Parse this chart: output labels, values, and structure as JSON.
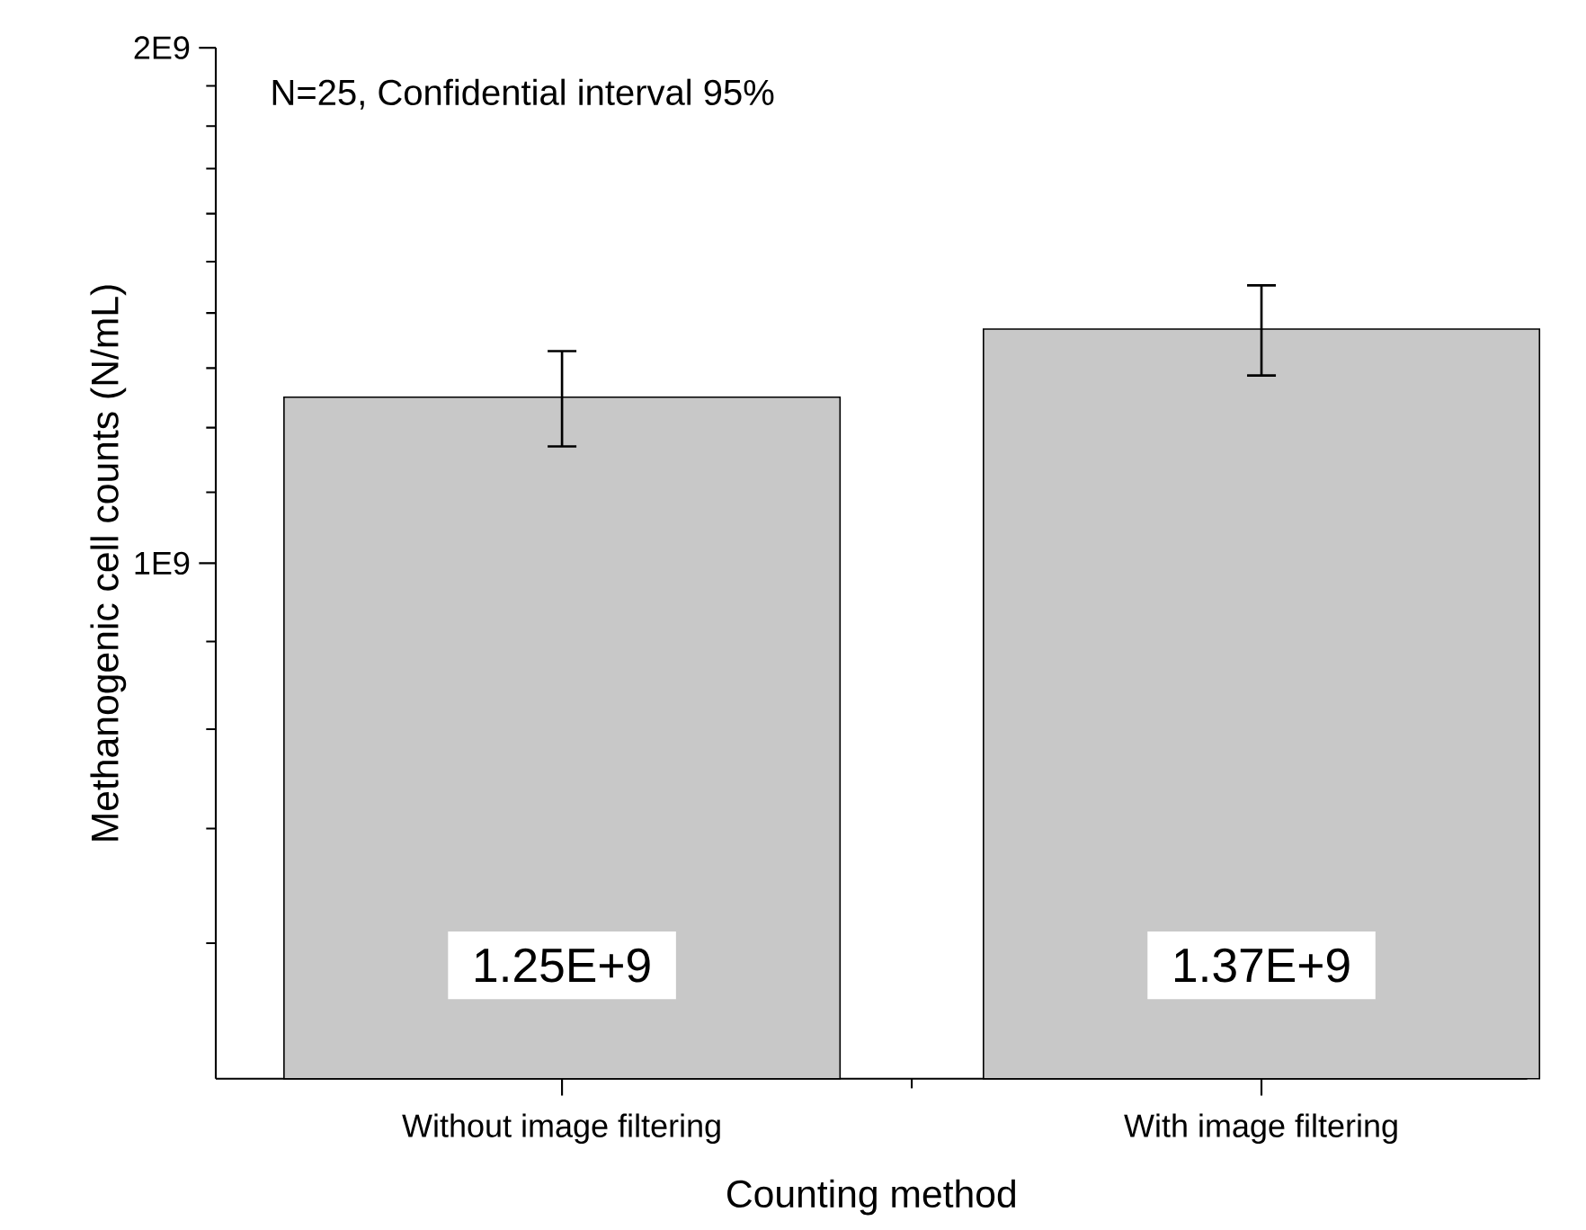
{
  "chart_data": {
    "type": "bar",
    "annotations": [
      "N=25, Confidential interval 95%"
    ],
    "xlabel": "Counting method",
    "ylabel": "Methanogenic cell counts (N/mL)",
    "categories": [
      "Without image filtering",
      "With image filtering"
    ],
    "values": [
      1250000000.0,
      1370000000.0
    ],
    "errors": [
      80000000.0,
      83000000.0
    ],
    "value_labels": [
      "1.25E+9",
      "1.37E+9"
    ],
    "color": "#c8c8c8",
    "log": "y",
    "ylim": [
      500000000.0,
      2000000000.0
    ],
    "yticks": [
      {
        "value": 600000000.0,
        "label": null
      },
      {
        "value": 700000000.0,
        "label": null
      },
      {
        "value": 800000000.0,
        "label": null
      },
      {
        "value": 900000000.0,
        "label": null
      },
      {
        "value": 1000000000.0,
        "label": "1E9"
      },
      {
        "value": 1100000000.0,
        "label": null
      },
      {
        "value": 1200000000.0,
        "label": null
      },
      {
        "value": 1300000000.0,
        "label": null
      },
      {
        "value": 1400000000.0,
        "label": null
      },
      {
        "value": 1500000000.0,
        "label": null
      },
      {
        "value": 1600000000.0,
        "label": null
      },
      {
        "value": 1700000000.0,
        "label": null
      },
      {
        "value": 1800000000.0,
        "label": null
      },
      {
        "value": 1900000000.0,
        "label": null
      },
      {
        "value": 2000000000.0,
        "label": "2E9"
      }
    ],
    "grid": false
  }
}
